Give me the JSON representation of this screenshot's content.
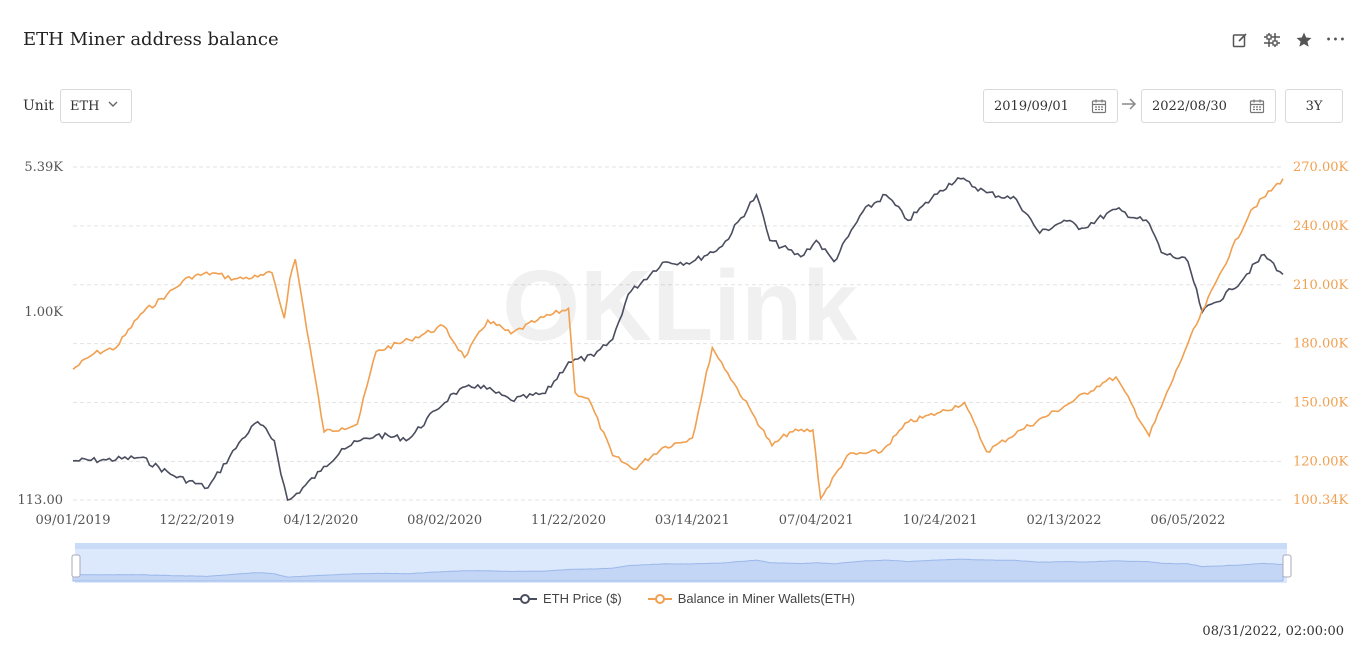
{
  "title": "ETH Miner address balance",
  "toolbar": {
    "icons": [
      "edit-icon",
      "compare-icon",
      "star-icon",
      "more-icon"
    ],
    "more_glyph": "•••"
  },
  "unit": {
    "label": "Unit",
    "value": "ETH"
  },
  "date_range": {
    "start": "2019/09/01",
    "end": "2022/08/30",
    "preset": "3Y"
  },
  "timestamp": "08/31/2022, 02:00:00",
  "watermark": "OKLink",
  "colors": {
    "price": "#4a4d5e",
    "balance": "#f0a050",
    "grid": "#e3e3e3",
    "slider": "#dce8fb"
  },
  "chart_data": {
    "type": "line",
    "x_ticks": [
      "09/01/2019",
      "12/22/2019",
      "04/12/2020",
      "08/02/2020",
      "11/22/2020",
      "03/14/2021",
      "07/04/2021",
      "10/24/2021",
      "02/13/2022",
      "06/05/2022"
    ],
    "y_left": {
      "log_scale": true,
      "ticks": [
        "5.39K",
        "1.00K",
        "113.00"
      ],
      "range": [
        113,
        5390
      ]
    },
    "y_right": {
      "ticks": [
        "270.00K",
        "240.00K",
        "210.00K",
        "180.00K",
        "150.00K",
        "120.00K",
        "100.34K"
      ],
      "range": [
        100340,
        270000
      ]
    },
    "grid": true,
    "legend_position": "bottom",
    "series": [
      {
        "name": "ETH Price ($)",
        "axis": "left",
        "x": [
          "2019-09-01",
          "2019-10-01",
          "2019-11-01",
          "2019-12-01",
          "2020-01-01",
          "2020-02-01",
          "2020-02-15",
          "2020-03-01",
          "2020-03-13",
          "2020-04-12",
          "2020-05-01",
          "2020-06-01",
          "2020-07-01",
          "2020-07-25",
          "2020-08-10",
          "2020-09-01",
          "2020-10-01",
          "2020-11-01",
          "2020-11-22",
          "2020-12-15",
          "2021-01-01",
          "2021-01-15",
          "2021-02-15",
          "2021-03-14",
          "2021-04-10",
          "2021-05-11",
          "2021-05-23",
          "2021-06-20",
          "2021-07-04",
          "2021-07-20",
          "2021-08-15",
          "2021-09-05",
          "2021-09-25",
          "2021-10-24",
          "2021-11-09",
          "2021-12-05",
          "2022-01-01",
          "2022-01-22",
          "2022-02-13",
          "2022-03-01",
          "2022-04-01",
          "2022-05-01",
          "2022-05-12",
          "2022-06-05",
          "2022-06-18",
          "2022-07-15",
          "2022-08-13",
          "2022-08-30"
        ],
        "values": [
          178,
          180,
          185,
          150,
          130,
          230,
          280,
          225,
          110,
          158,
          205,
          240,
          230,
          320,
          390,
          430,
          360,
          390,
          560,
          600,
          730,
          1230,
          1780,
          1790,
          2150,
          3900,
          2300,
          1900,
          2300,
          1800,
          3200,
          3900,
          2900,
          4100,
          4750,
          4000,
          3700,
          2500,
          2900,
          2650,
          3300,
          2800,
          2000,
          1800,
          1000,
          1300,
          1950,
          1550
        ]
      },
      {
        "name": "Balance in Miner Wallets(ETH)",
        "axis": "right",
        "x": [
          "2019-09-01",
          "2019-09-20",
          "2019-10-10",
          "2019-11-01",
          "2019-11-25",
          "2019-12-15",
          "2020-01-05",
          "2020-01-25",
          "2020-02-15",
          "2020-02-28",
          "2020-03-10",
          "2020-03-15",
          "2020-03-20",
          "2020-04-15",
          "2020-05-01",
          "2020-05-15",
          "2020-06-01",
          "2020-07-01",
          "2020-08-01",
          "2020-08-20",
          "2020-09-10",
          "2020-10-01",
          "2020-10-25",
          "2020-11-22",
          "2020-11-28",
          "2020-12-10",
          "2021-01-01",
          "2021-01-20",
          "2021-02-15",
          "2021-03-14",
          "2021-04-01",
          "2021-04-15",
          "2021-05-10",
          "2021-05-25",
          "2021-06-10",
          "2021-07-01",
          "2021-07-08",
          "2021-08-01",
          "2021-09-01",
          "2021-09-25",
          "2021-10-24",
          "2021-11-15",
          "2021-12-05",
          "2022-01-05",
          "2022-02-13",
          "2022-03-20",
          "2022-04-01",
          "2022-05-01",
          "2022-06-05",
          "2022-07-01",
          "2022-08-01",
          "2022-08-30"
        ],
        "values": [
          167000,
          175000,
          178000,
          195000,
          205000,
          214000,
          216000,
          213000,
          214000,
          216000,
          193000,
          213000,
          223000,
          135000,
          137000,
          139000,
          176000,
          182000,
          189000,
          173000,
          192000,
          185000,
          192000,
          198000,
          155000,
          152000,
          123000,
          116000,
          127000,
          132000,
          178000,
          165000,
          142000,
          128000,
          135000,
          136000,
          101000,
          123000,
          125000,
          140000,
          145000,
          150000,
          125000,
          136000,
          148000,
          160000,
          163000,
          133000,
          180000,
          212000,
          248000,
          264000
        ]
      }
    ]
  }
}
